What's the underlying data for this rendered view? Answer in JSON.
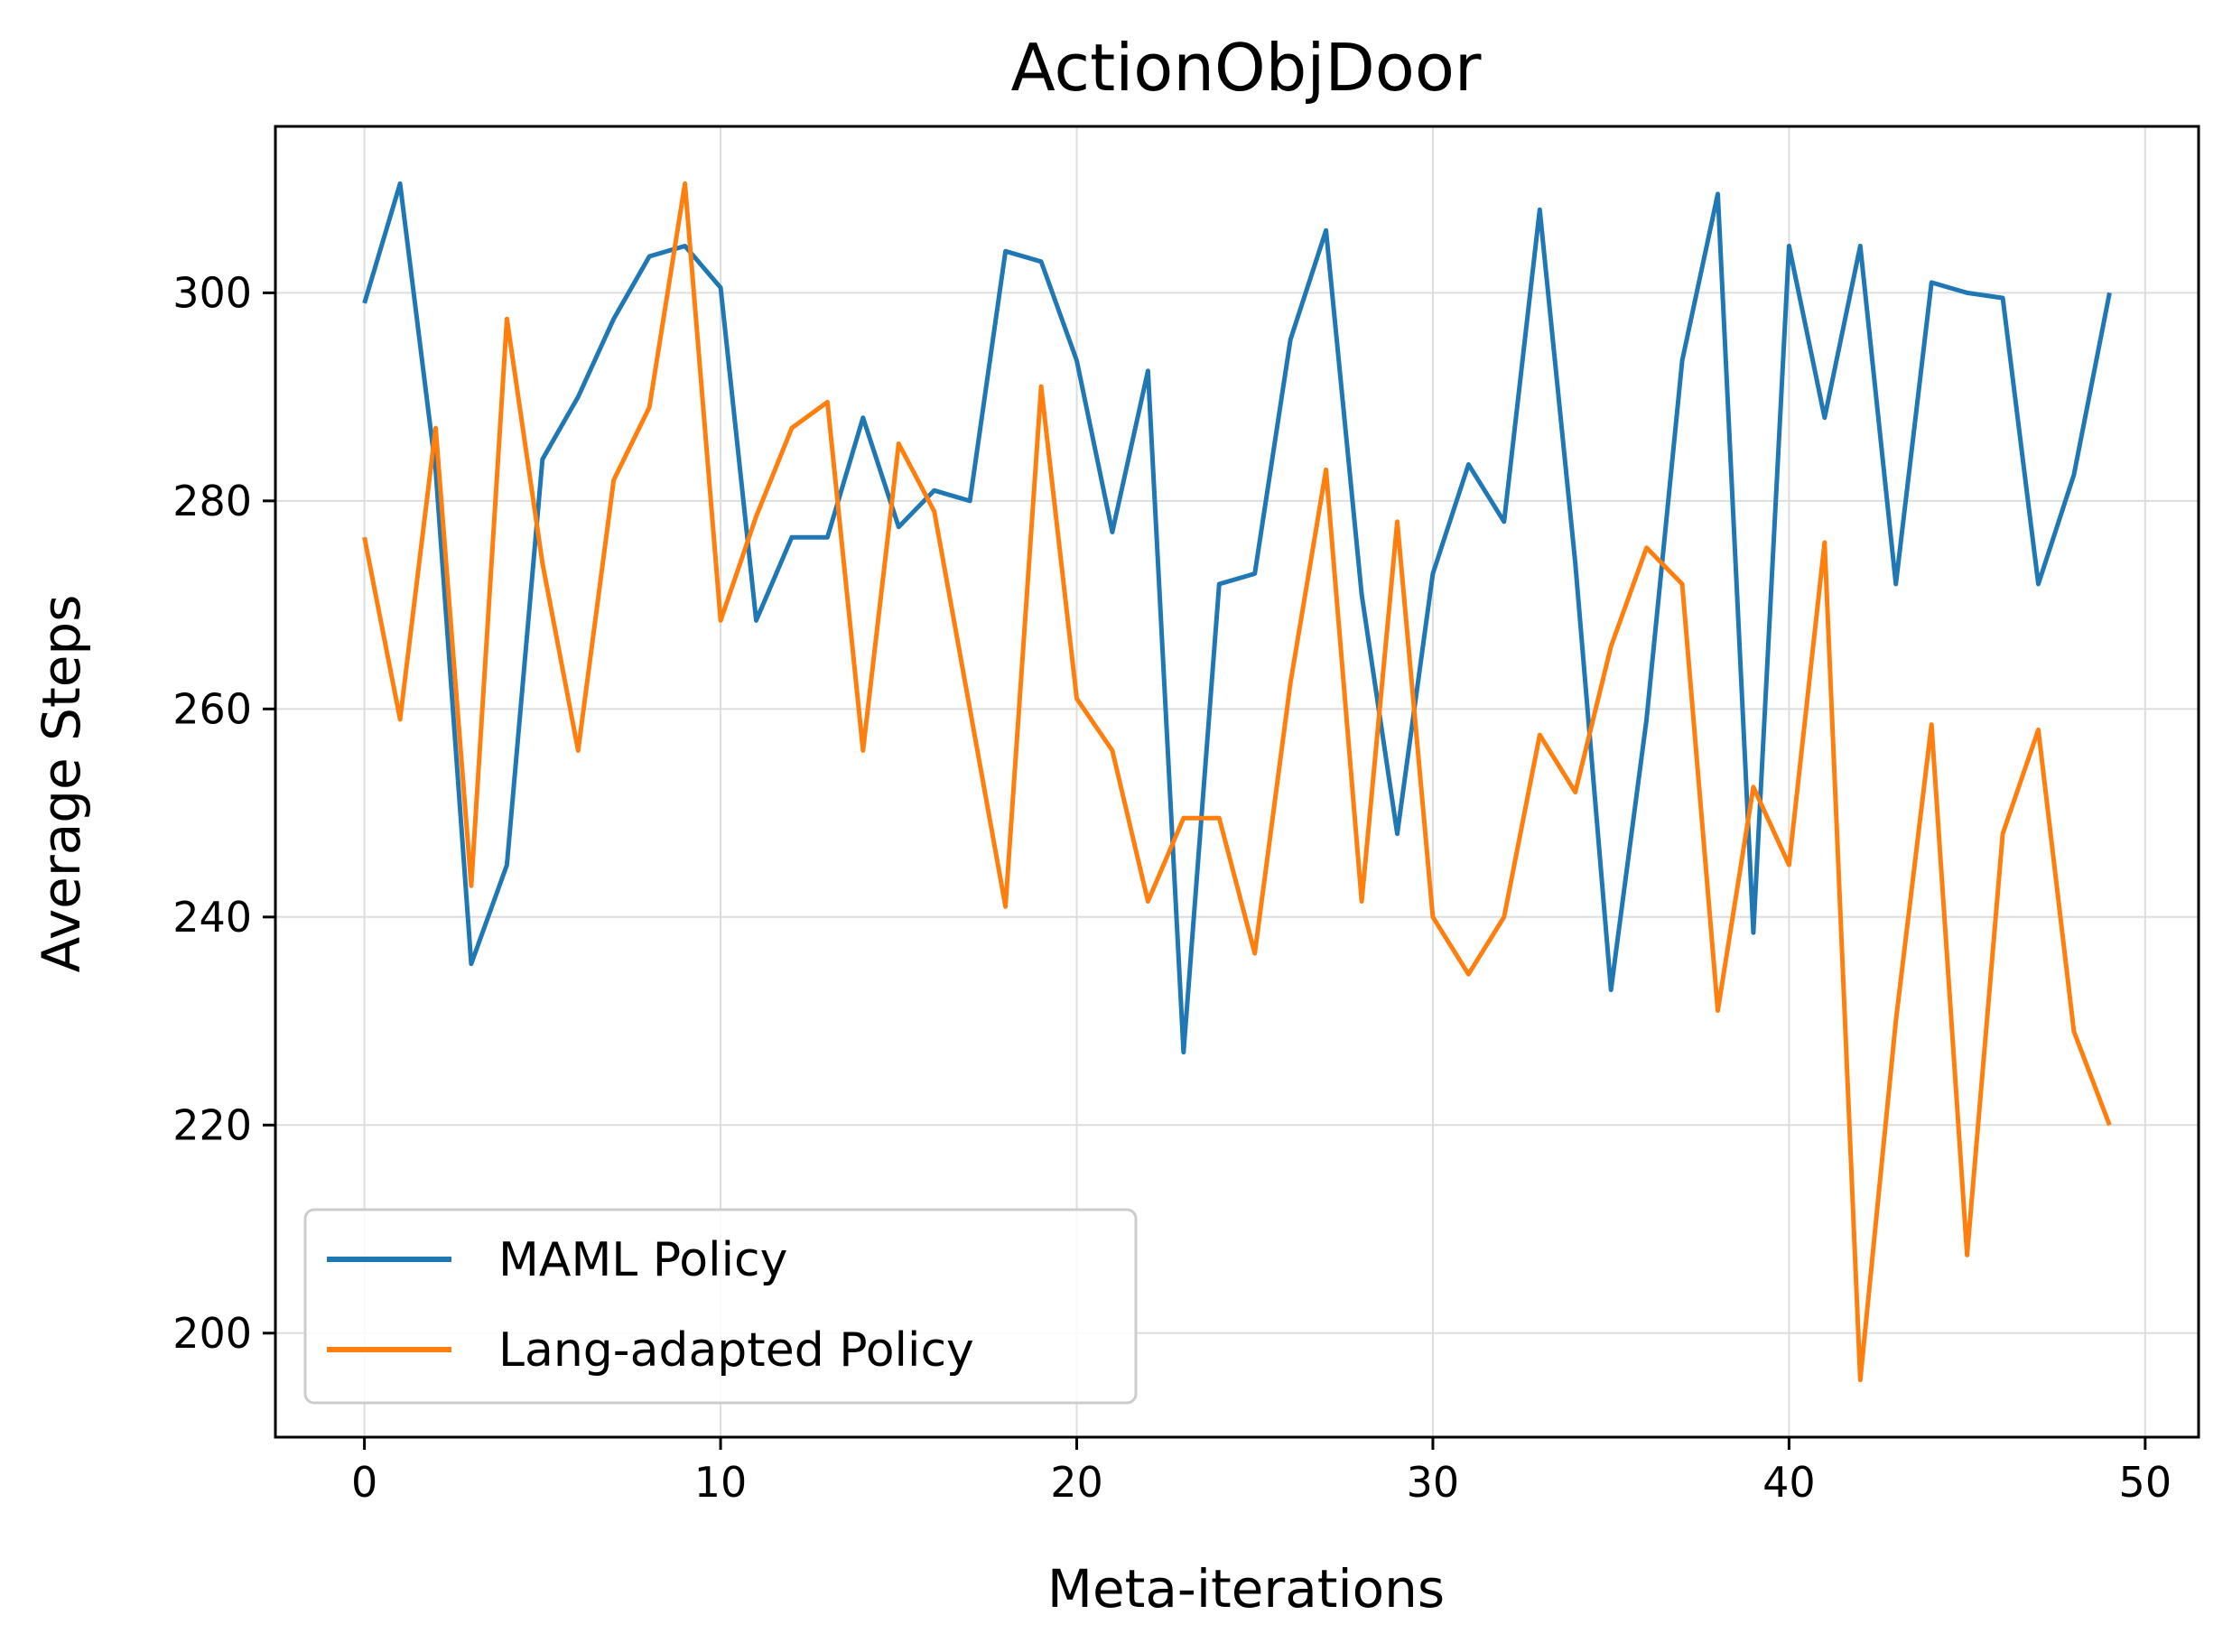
{
  "chart_data": {
    "type": "line",
    "title": "ActionObjDoor",
    "xlabel": "Meta-iterations",
    "ylabel": "Average Steps",
    "xlim": [
      -2.5,
      51.5
    ],
    "ylim": [
      190,
      316
    ],
    "xticks": [
      0,
      10,
      20,
      30,
      40,
      50
    ],
    "yticks": [
      200,
      220,
      240,
      260,
      280,
      300
    ],
    "grid": true,
    "legend_position": "lower-left",
    "x": [
      0,
      1,
      2,
      3,
      4,
      5,
      6,
      7,
      8,
      9,
      10,
      11,
      12,
      13,
      14,
      15,
      16,
      17,
      18,
      19,
      20,
      21,
      22,
      23,
      24,
      25,
      26,
      27,
      28,
      29,
      30,
      31,
      32,
      33,
      34,
      35,
      36,
      37,
      38,
      39,
      40,
      41,
      42,
      43,
      44,
      45,
      46,
      47,
      48,
      49
    ],
    "series": [
      {
        "name": "MAML Policy",
        "color": "#1f77b4",
        "values": [
          299,
          310.5,
          283,
          235.5,
          245,
          284,
          290,
          297.5,
          303.5,
          304.5,
          300.5,
          268.5,
          276.5,
          276.5,
          288,
          277.5,
          281,
          280,
          304,
          303,
          293.5,
          277,
          292.5,
          227,
          272,
          273,
          295.5,
          306,
          271,
          248,
          273,
          283.5,
          278,
          308,
          274,
          233,
          259,
          293.5,
          309.5,
          238.5,
          304.5,
          288,
          304.5,
          272,
          301,
          300,
          299.5,
          272,
          282.5,
          300
        ]
      },
      {
        "name": "Lang-adapted Policy",
        "color": "#ff7f0e",
        "values": [
          276.5,
          259,
          287,
          243,
          297.5,
          274,
          256,
          282,
          289,
          310.5,
          268.5,
          278.5,
          287,
          289.5,
          256,
          285.5,
          279,
          260,
          241,
          291,
          261,
          256,
          241.5,
          249.5,
          249.5,
          236.5,
          262.5,
          283,
          241.5,
          278,
          240,
          234.5,
          240,
          257.5,
          252,
          266,
          275.5,
          272,
          231,
          252.5,
          245,
          276,
          195.5,
          230,
          258.5,
          207.5,
          248,
          258,
          229,
          220
        ]
      }
    ]
  }
}
